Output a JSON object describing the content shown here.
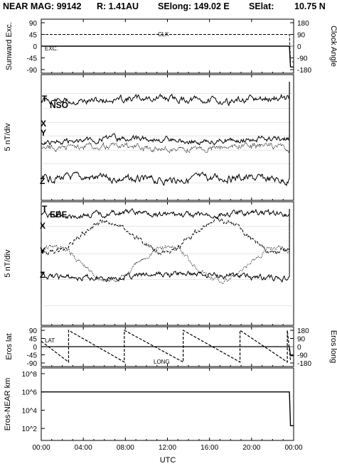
{
  "header": {
    "mission": "NEAR MAG: 99142",
    "r": "R: 1.41AU",
    "selong": "SElong: 149.02 E",
    "selat": "SElat:",
    "selat_val": "10.75 N"
  },
  "chart_data": [
    {
      "type": "line",
      "panel": "sunward-excursion",
      "ylabel": "Sunward Exc.",
      "y2label": "Clock Angle",
      "yticks": [
        "90",
        "45",
        "0",
        "-45",
        "-90"
      ],
      "y2ticks": [
        "180",
        "90",
        "0",
        "-90",
        "-180"
      ],
      "ylim": [
        -90,
        90
      ],
      "series": [
        {
          "name": "CLK",
          "style": "dashed",
          "x": [
            0,
            23.6,
            23.7,
            24.0
          ],
          "y": [
            45,
            45,
            -60,
            -60
          ]
        },
        {
          "name": "EXC.",
          "style": "solid",
          "x": [
            0,
            23.6,
            23.7,
            24.0
          ],
          "y": [
            0,
            0,
            -80,
            -80
          ]
        }
      ]
    },
    {
      "type": "line",
      "panel": "nso",
      "title": "NSO",
      "ylabel": "5 nT/div",
      "series": [
        {
          "name": "T",
          "level": 20,
          "amp": 3.5
        },
        {
          "name": "X",
          "level": 52,
          "amp": 3
        },
        {
          "name": "Y",
          "level": 58,
          "amp": 3
        },
        {
          "name": "Z",
          "level": 83,
          "amp": 4
        }
      ]
    },
    {
      "type": "line",
      "panel": "ebf",
      "title": "EBF",
      "ylabel": "5 nT/div",
      "series": [
        {
          "name": "T",
          "level": 10,
          "amp": 3
        },
        {
          "name": "X",
          "style": "dashed",
          "level": 28,
          "amp": 20
        },
        {
          "name": "Y",
          "style": "dotted",
          "level": 50,
          "amp": 22
        },
        {
          "name": "Z",
          "level": 60,
          "amp": 3
        }
      ]
    },
    {
      "type": "line",
      "panel": "eros-lat-long",
      "ylabel": "Eros lat",
      "y2label": "Eros long",
      "yticks": [
        "90",
        "45",
        "0",
        "-45",
        "-90"
      ],
      "y2ticks": [
        "180",
        "90",
        "0",
        "-90",
        "-180"
      ],
      "ylim": [
        -90,
        90
      ],
      "series": [
        {
          "name": "LAT",
          "style": "solid",
          "x": [
            0,
            23.6,
            23.7,
            24.0
          ],
          "y": [
            0,
            0,
            -50,
            -50
          ]
        },
        {
          "name": "LONG",
          "style": "dashed",
          "x": [
            0,
            2.6,
            2.6,
            7.9,
            7.9,
            13.5,
            13.5,
            18.9,
            18.9,
            23.4,
            23.4,
            23.7
          ],
          "y": [
            30,
            -85,
            90,
            -85,
            90,
            -85,
            90,
            -85,
            90,
            -85,
            90,
            -75
          ]
        }
      ]
    },
    {
      "type": "line",
      "panel": "eros-near-km",
      "ylabel": "Eros-NEAR km",
      "yticks": [
        "10^8",
        "10^6",
        "10^4",
        "10^2"
      ],
      "scale": "log",
      "series": [
        {
          "name": "range",
          "x": [
            0,
            23.6,
            23.7,
            24.0
          ],
          "y": [
            1000000,
            1000000,
            200,
            200
          ]
        }
      ]
    }
  ],
  "xaxis": {
    "label": "UTC",
    "ticks": [
      "00:00",
      "04:00",
      "08:00",
      "12:00",
      "16:00",
      "20:00",
      "00:00"
    ]
  },
  "panel_labels": {
    "clk": "CLK",
    "exc": "EXC.",
    "nso_t": "T",
    "nso_title": "NSO",
    "nso_x": "X",
    "nso_y": "Y",
    "nso_z": "Z",
    "ebf_t": "T",
    "ebf_title": "EBF",
    "ebf_x": "X",
    "ebf_y": "Y",
    "ebf_z": "Z",
    "lat": "LAT",
    "long": "LONG"
  }
}
